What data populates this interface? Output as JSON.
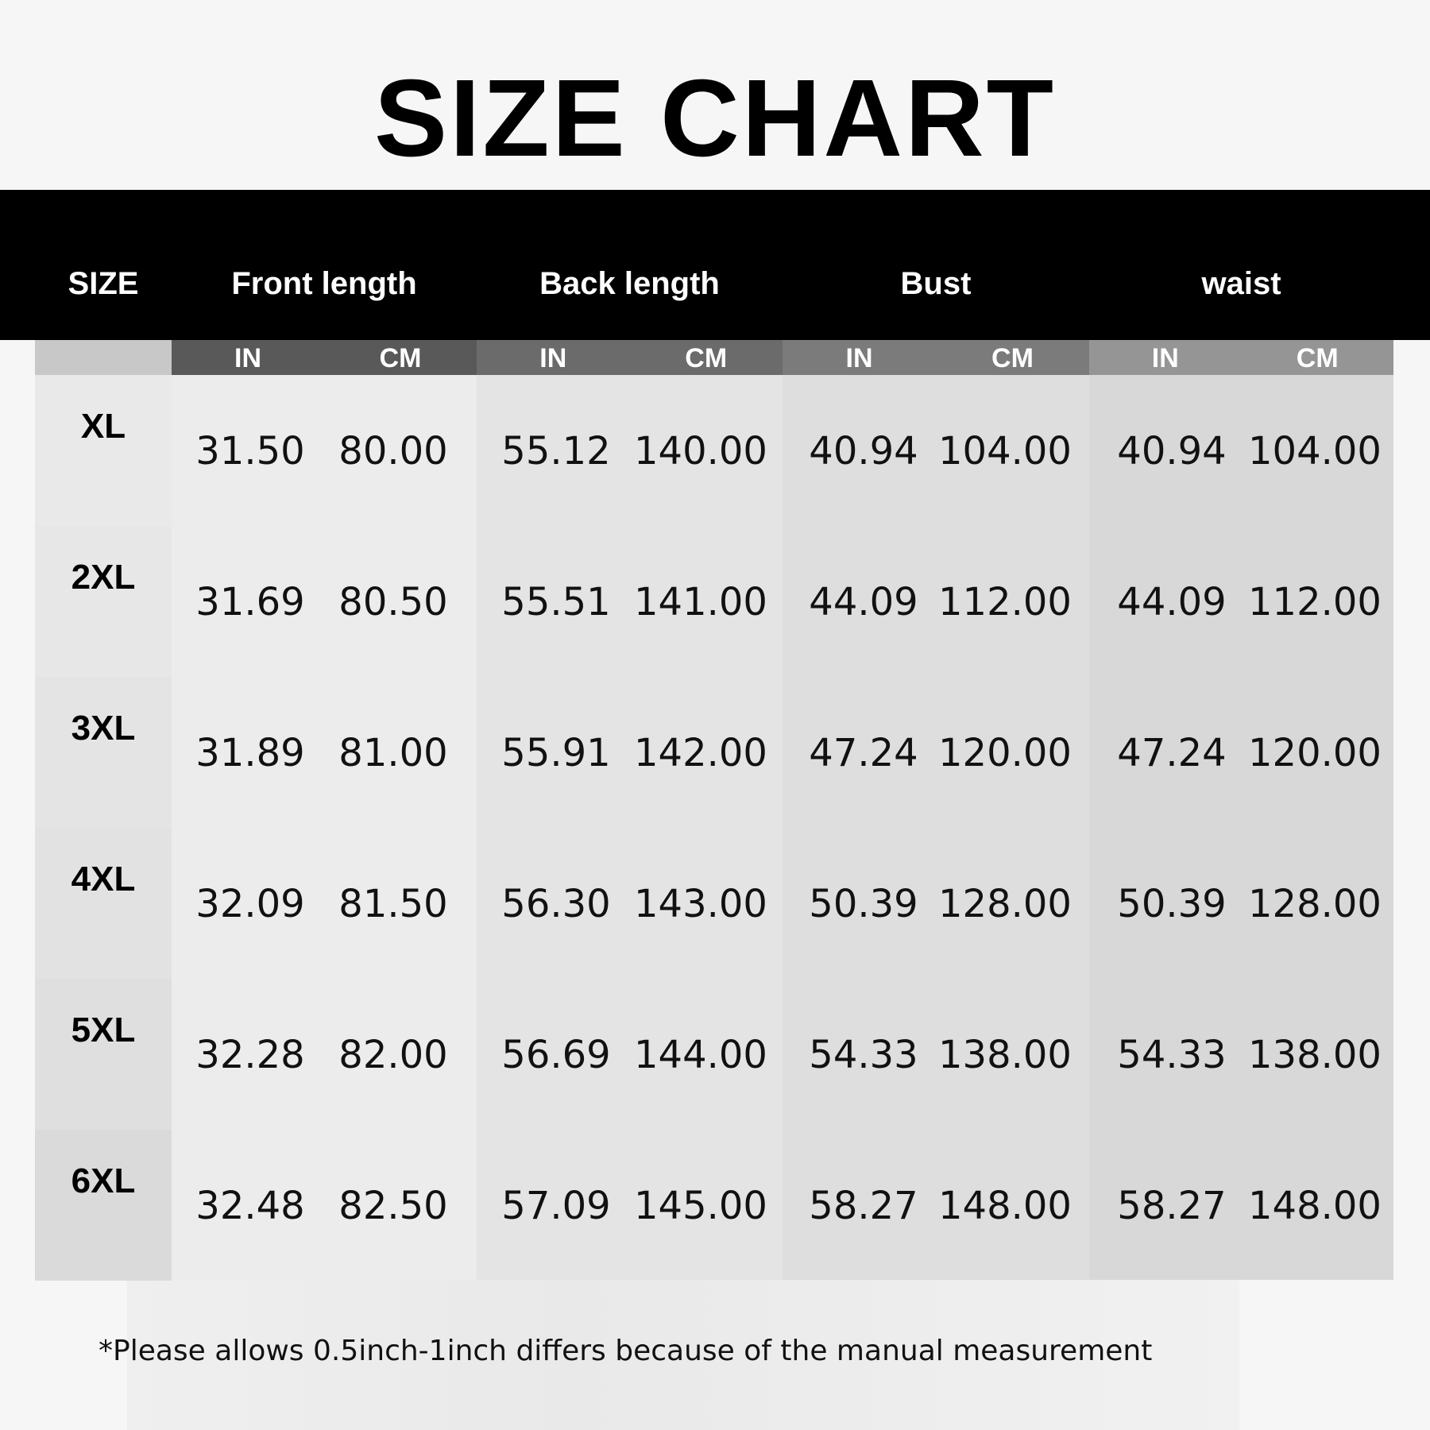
{
  "title": "SIZE CHART",
  "headers": {
    "size": "SIZE",
    "groups": [
      "Front  length",
      "Back length",
      "Bust",
      "waist"
    ],
    "units": [
      "IN",
      "CM"
    ]
  },
  "rows": [
    {
      "size": "XL",
      "values": [
        "31.50",
        "80.00",
        "55.12",
        "140.00",
        "40.94",
        "104.00",
        "40.94",
        "104.00"
      ]
    },
    {
      "size": "2XL",
      "values": [
        "31.69",
        "80.50",
        "55.51",
        "141.00",
        "44.09",
        "112.00",
        "44.09",
        "112.00"
      ]
    },
    {
      "size": "3XL",
      "values": [
        "31.89",
        "81.00",
        "55.91",
        "142.00",
        "47.24",
        "120.00",
        "47.24",
        "120.00"
      ]
    },
    {
      "size": "4XL",
      "values": [
        "32.09",
        "81.50",
        "56.30",
        "143.00",
        "50.39",
        "128.00",
        "50.39",
        "128.00"
      ]
    },
    {
      "size": "5XL",
      "values": [
        "32.28",
        "82.00",
        "56.69",
        "144.00",
        "54.33",
        "138.00",
        "54.33",
        "138.00"
      ]
    },
    {
      "size": "6XL",
      "values": [
        "32.48",
        "82.50",
        "57.09",
        "145.00",
        "58.27",
        "148.00",
        "58.27",
        "148.00"
      ]
    }
  ],
  "footnote": "*Please allows 0.5inch-1inch differs because of the manual measurement",
  "colors": {
    "header_band": "#000000",
    "unit_header_shades": [
      "#595959",
      "#6b6b6b",
      "#7b7b7b",
      "#959595"
    ],
    "body_shades": [
      "#ececec",
      "#e4e4e4",
      "#dedede",
      "#d8d8d8"
    ]
  }
}
